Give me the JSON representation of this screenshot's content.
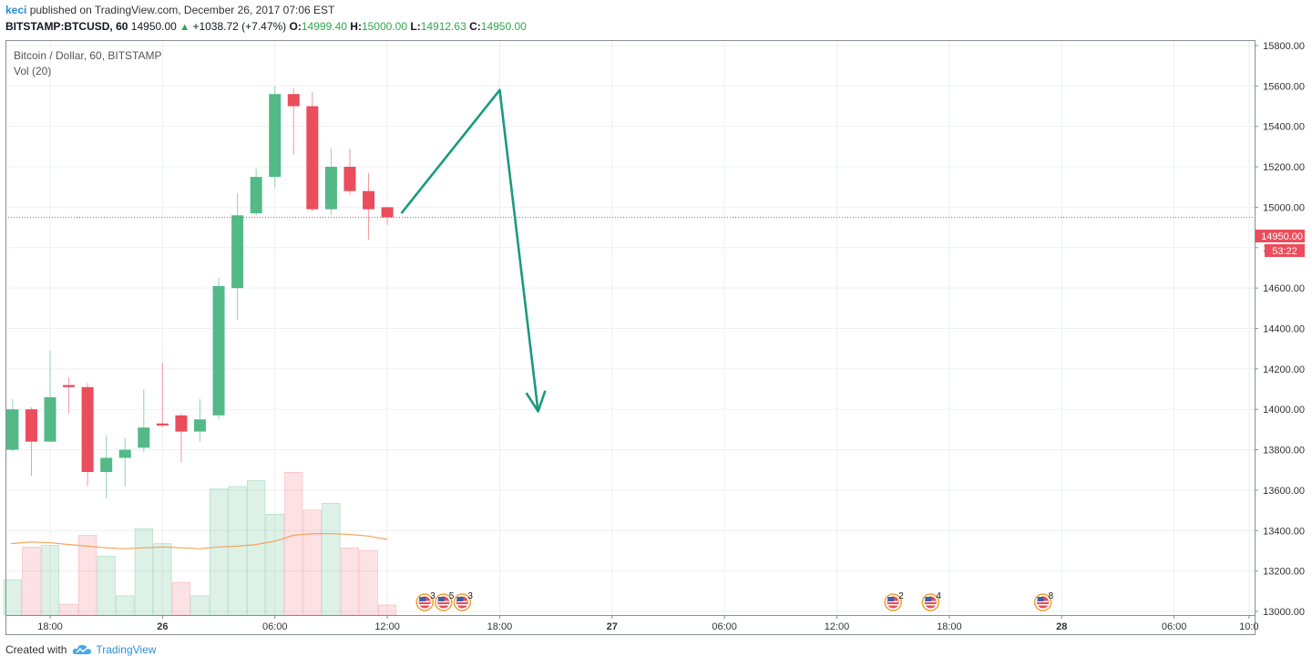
{
  "header": {
    "user": "keci",
    "published_text": "published on TradingView.com, December 26, 2017 07:06 EST",
    "symbol": "BITSTAMP:BTCUSD, 60",
    "last": "14950.00",
    "change": "+1038.72 (+7.47%)",
    "o_label": "O:",
    "o": "14999.40",
    "h_label": "H:",
    "h": "15000.00",
    "l_label": "L:",
    "l": "14912.63",
    "c_label": "C:",
    "c": "14950.00"
  },
  "legend": {
    "title": "Bitcoin / Dollar, 60, BITSTAMP",
    "vol": "Vol (20)"
  },
  "price_badge": {
    "price": "14950.00",
    "countdown": "53:22"
  },
  "footer": {
    "created_with": "Created with",
    "brand": "TradingView"
  },
  "colors": {
    "up": "#53b987",
    "down": "#eb4d5c",
    "ma": "#f7a35c",
    "arrow": "#1a9a7e",
    "grid": "#eef0f3",
    "brand": "#2a8fd6"
  },
  "chart_data": {
    "type": "candlestick",
    "title": "Bitcoin / Dollar, 60, BITSTAMP",
    "ylim": [
      12960,
      15920
    ],
    "x_ticks": [
      {
        "label": "18:00",
        "i": 0
      },
      {
        "label": "26",
        "i": 6
      },
      {
        "label": "06:00",
        "i": 12
      },
      {
        "label": "12:00",
        "i": 18
      },
      {
        "label": "18:00",
        "i": 24
      },
      {
        "label": "27",
        "i": 30
      },
      {
        "label": "06:00",
        "i": 36
      },
      {
        "label": "12:00",
        "i": 42
      },
      {
        "label": "18:00",
        "i": 48
      },
      {
        "label": "28",
        "i": 54
      },
      {
        "label": "06:00",
        "i": 60
      },
      {
        "label": "10:0",
        "i": 64
      }
    ],
    "y_ticks": [
      13000,
      13200,
      13400,
      13600,
      13800,
      14000,
      14200,
      14400,
      14600,
      14800,
      15000,
      15200,
      15400,
      15600,
      15800
    ],
    "candles": [
      {
        "i": -2,
        "o": 13800,
        "h": 14050,
        "l": 13790,
        "c": 14000
      },
      {
        "i": -1,
        "o": 14000,
        "h": 14010,
        "l": 13670,
        "c": 13840
      },
      {
        "i": 0,
        "o": 13840,
        "h": 14290,
        "l": 13840,
        "c": 14060
      },
      {
        "i": 1,
        "o": 14120,
        "h": 14160,
        "l": 13980,
        "c": 14110
      },
      {
        "i": 2,
        "o": 14110,
        "h": 14130,
        "l": 13620,
        "c": 13690
      },
      {
        "i": 3,
        "o": 13690,
        "h": 13870,
        "l": 13560,
        "c": 13760
      },
      {
        "i": 4,
        "o": 13760,
        "h": 13860,
        "l": 13620,
        "c": 13800
      },
      {
        "i": 5,
        "o": 13810,
        "h": 14100,
        "l": 13790,
        "c": 13910
      },
      {
        "i": 6,
        "o": 13930,
        "h": 14230,
        "l": 13910,
        "c": 13920
      },
      {
        "i": 7,
        "o": 13970,
        "h": 13980,
        "l": 13740,
        "c": 13890
      },
      {
        "i": 8,
        "o": 13890,
        "h": 14050,
        "l": 13840,
        "c": 13950
      },
      {
        "i": 9,
        "o": 13970,
        "h": 14650,
        "l": 13950,
        "c": 14610
      },
      {
        "i": 10,
        "o": 14600,
        "h": 15070,
        "l": 14440,
        "c": 14960
      },
      {
        "i": 11,
        "o": 14970,
        "h": 15190,
        "l": 14960,
        "c": 15150
      },
      {
        "i": 12,
        "o": 15150,
        "h": 15600,
        "l": 15100,
        "c": 15560
      },
      {
        "i": 13,
        "o": 15560,
        "h": 15590,
        "l": 15260,
        "c": 15500
      },
      {
        "i": 14,
        "o": 15500,
        "h": 15570,
        "l": 14980,
        "c": 14990
      },
      {
        "i": 15,
        "o": 14990,
        "h": 15290,
        "l": 14960,
        "c": 15200
      },
      {
        "i": 16,
        "o": 15200,
        "h": 15290,
        "l": 15060,
        "c": 15080
      },
      {
        "i": 17,
        "o": 15080,
        "h": 15170,
        "l": 14840,
        "c": 14990
      },
      {
        "i": 18,
        "o": 15000,
        "h": 15000,
        "l": 14912.63,
        "c": 14950
      }
    ],
    "volume": [
      {
        "i": -2,
        "v": 42,
        "up": true
      },
      {
        "i": -1,
        "v": 81,
        "up": false
      },
      {
        "i": 0,
        "v": 83,
        "up": true
      },
      {
        "i": 1,
        "v": 13,
        "up": false
      },
      {
        "i": 2,
        "v": 95,
        "up": false
      },
      {
        "i": 3,
        "v": 70,
        "up": true
      },
      {
        "i": 4,
        "v": 23,
        "up": true
      },
      {
        "i": 5,
        "v": 103,
        "up": true
      },
      {
        "i": 6,
        "v": 85,
        "up": true
      },
      {
        "i": 7,
        "v": 39,
        "up": false
      },
      {
        "i": 8,
        "v": 23,
        "up": true
      },
      {
        "i": 9,
        "v": 150,
        "up": true
      },
      {
        "i": 10,
        "v": 153,
        "up": true
      },
      {
        "i": 11,
        "v": 160,
        "up": true
      },
      {
        "i": 12,
        "v": 120,
        "up": true
      },
      {
        "i": 13,
        "v": 170,
        "up": false
      },
      {
        "i": 14,
        "v": 125,
        "up": false
      },
      {
        "i": 15,
        "v": 133,
        "up": true
      },
      {
        "i": 16,
        "v": 80,
        "up": false
      },
      {
        "i": 17,
        "v": 77,
        "up": false
      },
      {
        "i": 18,
        "v": 12,
        "up": false
      }
    ],
    "volume_ma": [
      85,
      87,
      86,
      84,
      82,
      80,
      79,
      80,
      81,
      80,
      79,
      81,
      82,
      84,
      88,
      95,
      97,
      97,
      96,
      94,
      90
    ],
    "last_price_line": 14950,
    "projection": [
      {
        "i": 18.75,
        "p": 14970
      },
      {
        "i": 24,
        "p": 15580
      },
      {
        "i": 26.05,
        "p": 13990
      }
    ],
    "events": [
      {
        "i": 20,
        "n": "3"
      },
      {
        "i": 21,
        "n": "5"
      },
      {
        "i": 22,
        "n": "3"
      },
      {
        "i": 45,
        "n": "2"
      },
      {
        "i": 47,
        "n": "4"
      },
      {
        "i": 53,
        "n": "8"
      }
    ]
  }
}
